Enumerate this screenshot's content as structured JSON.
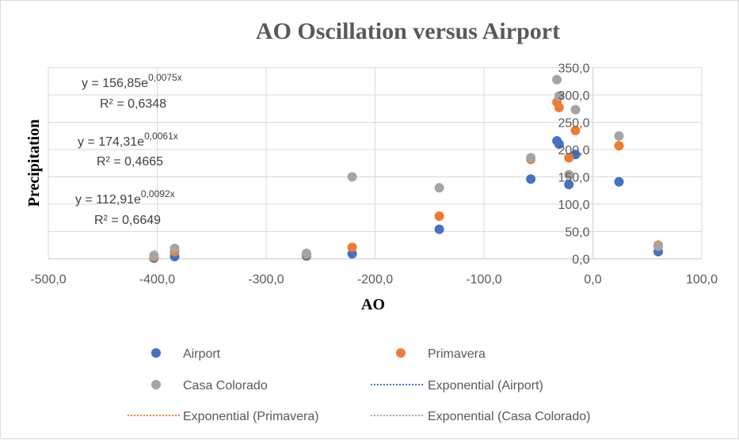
{
  "chart_data": {
    "type": "scatter",
    "title": "AO Oscillation versus Airport",
    "xlabel": "AO",
    "ylabel": "Precipitation",
    "xlim": [
      -500,
      100
    ],
    "ylim": [
      0,
      350
    ],
    "x_ticks": [
      "-500,0",
      "-400,0",
      "-300,0",
      "-200,0",
      "-100,0",
      "0,0",
      "100,0"
    ],
    "y_ticks": [
      "0,0",
      "50,0",
      "100,0",
      "150,0",
      "200,0",
      "250,0",
      "300,0",
      "350,0"
    ],
    "grid": true,
    "legend_position": "bottom",
    "series": [
      {
        "name": "Airport",
        "color": "#4472c4",
        "points": [
          [
            -403,
            1
          ],
          [
            -384,
            4
          ],
          [
            -263,
            5
          ],
          [
            -221,
            9
          ],
          [
            -141,
            54
          ],
          [
            -57,
            146
          ],
          [
            -33,
            216
          ],
          [
            -31,
            210
          ],
          [
            -22,
            136
          ],
          [
            -16,
            191
          ],
          [
            24,
            141
          ],
          [
            60,
            13
          ]
        ]
      },
      {
        "name": "Primavera",
        "color": "#ed7d31",
        "points": [
          [
            -403,
            3
          ],
          [
            -384,
            13
          ],
          [
            -263,
            8
          ],
          [
            -221,
            21
          ],
          [
            -141,
            78
          ],
          [
            -57,
            182
          ],
          [
            -33,
            287
          ],
          [
            -31,
            277
          ],
          [
            -22,
            185
          ],
          [
            -16,
            235
          ],
          [
            24,
            207
          ],
          [
            60,
            25
          ]
        ]
      },
      {
        "name": "Casa Colorado",
        "color": "#a5a5a5",
        "points": [
          [
            -403,
            6
          ],
          [
            -384,
            19
          ],
          [
            -263,
            10
          ],
          [
            -221,
            150
          ],
          [
            -141,
            130
          ],
          [
            -57,
            185
          ],
          [
            -33,
            328
          ],
          [
            -31,
            298
          ],
          [
            -22,
            154
          ],
          [
            -16,
            273
          ],
          [
            24,
            225
          ],
          [
            60,
            23
          ]
        ]
      }
    ],
    "trendlines": [
      {
        "name": "Exponential (Airport)",
        "color": "#4472c4",
        "a": 112.91,
        "b": 0.0092,
        "equation_base": "y = 112,91e",
        "equation_exp": "0,0092x",
        "r2": "R² = 0,6649"
      },
      {
        "name": "Exponential (Primavera)",
        "color": "#ed7d31",
        "a": 156.85,
        "b": 0.0075,
        "equation_base": "y = 156,85e",
        "equation_exp": "0,0075x",
        "r2": "R² = 0,6348"
      },
      {
        "name": "Exponential (Casa Colorado)",
        "color": "#a5a5a5",
        "a": 174.31,
        "b": 0.0061,
        "equation_base": "y = 174,31e",
        "equation_exp": "0,0061x",
        "r2": "R² = 0,4665"
      }
    ]
  }
}
